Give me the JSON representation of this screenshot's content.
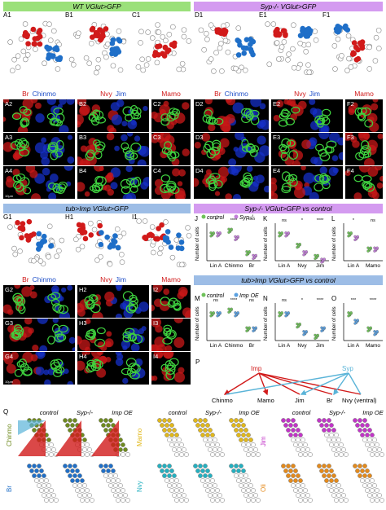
{
  "figure": {
    "headers": {
      "wt": "WT VGlut>GFP",
      "syp": "Syp-/- VGlut>GFP",
      "tubimp": "tub>Imp VGlut>GFP",
      "syp_vs_control": "Syp-/- VGlut>GFP vs control",
      "tubimp_vs_control": "tub>Imp VGlut>GFP vs control"
    },
    "colors": {
      "green_header": "#9be07a",
      "violet_header": "#d49bf0",
      "blue_header": "#9dbde6",
      "red_marker": "#d11a1a",
      "blue_marker": "#1f6fc8",
      "chinmo_olive": "#6e8a1e",
      "mamo_gold": "#e1b81b",
      "jim_magenta": "#c234c8",
      "br_blue": "#1f6fc8",
      "nvy_teal": "#24b0c0",
      "oli_orange": "#e48a1b"
    },
    "panel_letters": {
      "a1": "A1",
      "b1": "B1",
      "c1": "C1",
      "d1": "D1",
      "e1": "E1",
      "f1": "F1",
      "a2": "A2",
      "b2": "B2",
      "c2": "C2",
      "d2": "D2",
      "e2": "E2",
      "f2": "F2",
      "a3": "A3",
      "b3": "B3",
      "c3": "C3",
      "d3": "D3",
      "e3": "E3",
      "f3": "F3",
      "a4": "A4",
      "b4": "B4",
      "c4": "C4",
      "d4": "D4",
      "e4": "E4",
      "f4": "F4",
      "g1": "G1",
      "h1": "H1",
      "i1": "I1",
      "g2": "G2",
      "h2": "H2",
      "i2": "I2",
      "g3": "G3",
      "h3": "H3",
      "i3": "I3",
      "g4": "G4",
      "h4": "H4",
      "i4": "I4",
      "j": "J",
      "k": "K",
      "l": "L",
      "m": "M",
      "n": "N",
      "o": "O",
      "p": "P",
      "q": "Q"
    },
    "channels": {
      "br": "Br",
      "chinmo": "Chinmo",
      "nvy": "Nvy",
      "jim": "Jim",
      "mamo": "Mamo"
    },
    "scalebar": "10μm",
    "legend": {
      "control": "control",
      "sypko": "Syp-/-",
      "impoe": "Imp OE"
    },
    "y_axis_label": "Number of cells",
    "chart_data": [
      {
        "type": "scatter",
        "panel": "J",
        "categories": [
          "Lin A",
          "Chinmo",
          "Br"
        ],
        "series": [
          {
            "name": "control",
            "values": [
              7,
              8,
              2
            ]
          },
          {
            "name": "Syp-/-",
            "values": [
              7,
              6,
              1
            ]
          }
        ],
        "ylabel": "Number of cells",
        "sig": [
          "*",
          "****",
          "****"
        ]
      },
      {
        "type": "scatter",
        "panel": "K",
        "categories": [
          "Lin A",
          "Nvy",
          "Jim"
        ],
        "series": [
          {
            "name": "control",
            "values": [
              7,
              4,
              1
            ]
          },
          {
            "name": "Syp-/-",
            "values": [
              7,
              2,
              0
            ]
          }
        ],
        "ylabel": "Number of cells",
        "sig": [
          "ns",
          "*",
          "****"
        ]
      },
      {
        "type": "scatter",
        "panel": "L",
        "categories": [
          "Lin A",
          "Mamo"
        ],
        "series": [
          {
            "name": "control",
            "values": [
              7,
              3
            ]
          },
          {
            "name": "Syp-/-",
            "values": [
              6,
              3
            ]
          }
        ],
        "ylabel": "Number of cells",
        "sig": [
          "*",
          "ns"
        ]
      },
      {
        "type": "scatter",
        "panel": "M",
        "categories": [
          "Lin A",
          "Chinmo",
          "Br"
        ],
        "series": [
          {
            "name": "control",
            "values": [
              7,
              8,
              3
            ]
          },
          {
            "name": "Imp OE",
            "values": [
              7,
              7,
              3
            ]
          }
        ],
        "ylabel": "Number of cells",
        "sig": [
          "ns",
          "****",
          "ns"
        ]
      },
      {
        "type": "scatter",
        "panel": "N",
        "categories": [
          "Lin A",
          "Nvy",
          "Jim"
        ],
        "series": [
          {
            "name": "control",
            "values": [
              7,
              4,
              1
            ]
          },
          {
            "name": "Imp OE",
            "values": [
              7,
              2,
              3
            ]
          }
        ],
        "ylabel": "Number of cells",
        "sig": [
          "ns",
          "*",
          "****"
        ]
      },
      {
        "type": "scatter",
        "panel": "O",
        "categories": [
          "Lin A",
          "Mamo"
        ],
        "series": [
          {
            "name": "control",
            "values": [
              7,
              3
            ]
          },
          {
            "name": "Imp OE",
            "values": [
              5,
              2
            ]
          }
        ],
        "ylabel": "Number of cells",
        "sig": [
          "***",
          "****"
        ]
      }
    ],
    "diagram_p": {
      "imp": "Imp",
      "syp": "Syp",
      "targets": [
        "Chinmo",
        "Mamo",
        "Jim",
        "Br",
        "Nvy (ventral)"
      ]
    },
    "q_columns": [
      "control",
      "Syp-/-",
      "Imp OE"
    ],
    "q_rows": {
      "top": [
        "Chinmo",
        "Mamo",
        "Jim"
      ],
      "bottom": [
        "Br",
        "Nvy",
        "Oli"
      ]
    },
    "lineage_annotations": {
      "a1": [
        "A1",
        "A2",
        "A3"
      ],
      "b1": [
        "B1",
        "B2",
        "B3",
        "B4"
      ],
      "c1": [
        "C1",
        "C2",
        "C3",
        "C4"
      ],
      "d1": [
        "D1",
        "D2",
        "D3",
        "D4"
      ],
      "g1": [
        "G1",
        "G2",
        "G3",
        "G4"
      ],
      "h1": [
        "H1",
        "H2",
        "H3",
        "H4"
      ],
      "i1": [
        "I1",
        "I2",
        "I3",
        "I4"
      ]
    }
  }
}
